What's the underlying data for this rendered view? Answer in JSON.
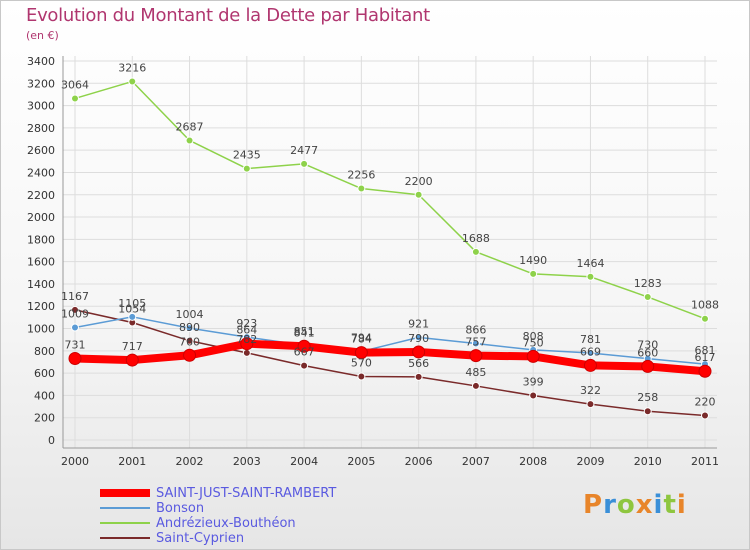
{
  "title": "Evolution du Montant de la Dette par Habitant",
  "subtitle": "(en €)",
  "logo": "Proxiti",
  "chart_data": {
    "type": "line",
    "title": "Evolution du Montant de la Dette par Habitant",
    "ylabel": "(en €)",
    "xlabel": "",
    "ylim": [
      0,
      3400
    ],
    "yticks": [
      0,
      200,
      400,
      600,
      800,
      1000,
      1200,
      1400,
      1600,
      1800,
      2000,
      2200,
      2400,
      2600,
      2800,
      3000,
      3200,
      3400
    ],
    "categories": [
      "2000",
      "2001",
      "2002",
      "2003",
      "2004",
      "2005",
      "2006",
      "2007",
      "2008",
      "2009",
      "2010",
      "2011"
    ],
    "legend_position": "bottom-left",
    "series": [
      {
        "name": "Saint-Cyprien",
        "color": "#7a2a2a",
        "values": [
          1167,
          1054,
          890,
          782,
          667,
          570,
          566,
          485,
          399,
          322,
          258,
          220
        ]
      },
      {
        "name": "Bonson",
        "color": "#5b9bd5",
        "values": [
          1009,
          1105,
          1004,
          923,
          851,
          794,
          921,
          866,
          808,
          781,
          730,
          681
        ]
      },
      {
        "name": "Andrézieux-Bouthéon",
        "color": "#8ed24a",
        "values": [
          3064,
          3216,
          2687,
          2435,
          2477,
          2256,
          2200,
          1688,
          1490,
          1464,
          1283,
          1088
        ]
      },
      {
        "name": "SAINT-JUST-SAINT-RAMBERT",
        "color": "#ff0000",
        "values": [
          731,
          717,
          760,
          864,
          841,
          784,
          790,
          757,
          750,
          669,
          660,
          617
        ]
      }
    ]
  },
  "legend": [
    {
      "name": "SAINT-JUST-SAINT-RAMBERT",
      "color": "#ff0000",
      "stroke": 8
    },
    {
      "name": "Bonson",
      "color": "#5b9bd5",
      "stroke": 2
    },
    {
      "name": "Andrézieux-Bouthéon",
      "color": "#8ed24a",
      "stroke": 2
    },
    {
      "name": "Saint-Cyprien",
      "color": "#7a2a2a",
      "stroke": 2
    }
  ],
  "logo_colors": [
    "#e8852a",
    "#3a8fd8",
    "#8ec63f",
    "#e8852a",
    "#3a8fd8",
    "#8ec63f",
    "#e8852a"
  ]
}
